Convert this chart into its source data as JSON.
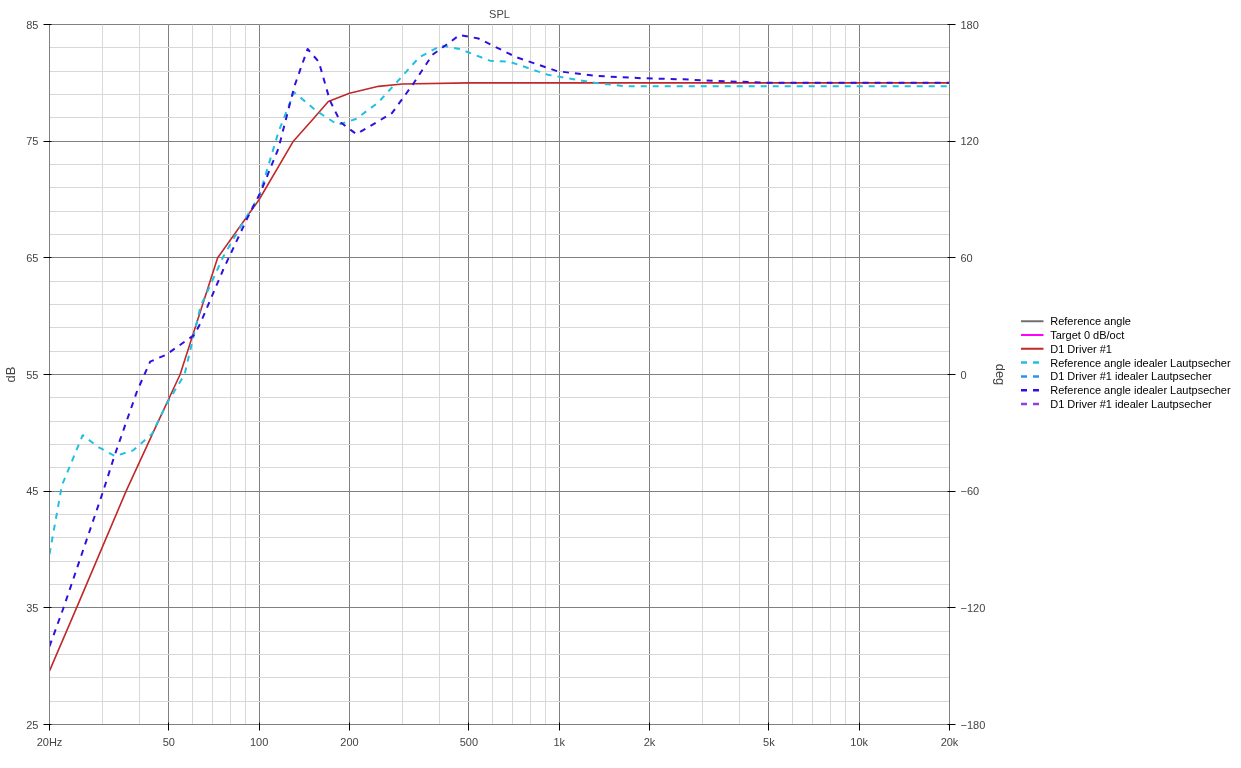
{
  "chart_data": {
    "type": "line",
    "title": "SPL",
    "ylabel": "dB",
    "y2label": "deg",
    "log": "x",
    "grid": true,
    "legend": "right",
    "marker": "none",
    "xlim": [
      20,
      20000
    ],
    "xticks": [
      {
        "value": 20,
        "label": "20Hz"
      },
      50,
      100,
      200,
      500,
      {
        "value": 1000,
        "label": "1k"
      },
      {
        "value": 2000,
        "label": "2k"
      },
      {
        "value": 5000,
        "label": "5k"
      },
      {
        "value": 10000,
        "label": "10k"
      },
      {
        "value": 20000,
        "label": "20k"
      }
    ],
    "ylim": [
      25,
      85
    ],
    "yticks": [
      25,
      35,
      45,
      55,
      65,
      75,
      85
    ],
    "y2lim": [
      -180,
      180
    ],
    "y2ticks": [
      -180,
      -120,
      -60,
      0,
      60,
      120,
      180
    ],
    "series": [
      {
        "name": "Reference angle",
        "color": "#707070",
        "line_style": "solid"
      },
      {
        "name": "Target 0 dB/oct",
        "color": "#ff00ff",
        "line_style": "solid"
      },
      {
        "name": "D1 Driver #1",
        "color": "#c0282a",
        "line_style": "solid",
        "x": [
          20,
          25,
          30,
          36,
          45,
          54.5,
          72.7,
          100,
          130,
          150,
          170,
          200,
          250,
          300,
          500,
          20000
        ],
        "values": [
          29.6,
          35.4,
          40.2,
          45,
          50.4,
          55,
          65,
          70,
          75,
          76.8,
          78.4,
          79.1,
          79.7,
          79.9,
          80,
          80
        ]
      },
      {
        "name": "Reference angle idealer Lautpsecher",
        "color": "#20c0e0",
        "line_style": "dashed",
        "x": [
          20,
          22,
          25.8,
          29,
          33.1,
          38,
          43.9,
          49.2,
          56.4,
          63.7,
          75.9,
          87.3,
          100,
          116,
          130.7,
          155,
          183,
          210,
          249,
          303,
          342,
          405,
          466,
          587,
          685,
          914,
          1315,
          1670,
          3000,
          20000
        ],
        "values": [
          39.6,
          45.5,
          49.8,
          48.8,
          48,
          48.5,
          49.9,
          52.5,
          55,
          60.8,
          65.1,
          67.8,
          70.3,
          75.8,
          79.2,
          77.6,
          76.4,
          76.9,
          78.3,
          80.7,
          82.2,
          83.2,
          82.9,
          81.9,
          81.8,
          80.7,
          80,
          79.7,
          79.7,
          79.7
        ]
      },
      {
        "name": "D1 Driver #1 idealer Lautpsecher",
        "color": "#3090f0",
        "line_style": "dashed"
      },
      {
        "name": "Reference angle idealer Lautpsecher",
        "color": "#3010e0",
        "line_style": "dashed",
        "x": [
          20,
          22.2,
          30.2,
          32.9,
          39.2,
          43.3,
          49,
          60.8,
          63.7,
          75.9,
          91.3,
          101,
          116,
          131,
          145,
          158,
          172,
          187,
          211,
          277,
          326,
          378,
          466,
          538,
          719,
          985,
          1315,
          1880,
          2600,
          3070,
          5000,
          20000
        ],
        "values": [
          31.7,
          34.9,
          45,
          48,
          53.6,
          56.1,
          56.7,
          58.4,
          59.4,
          64,
          68.4,
          70.6,
          74.4,
          79.7,
          82.9,
          81.8,
          78.5,
          76.6,
          75.6,
          77.4,
          79.9,
          82.4,
          84.1,
          83.8,
          82.2,
          81,
          80.6,
          80.4,
          80.3,
          80.2,
          80,
          80
        ]
      },
      {
        "name": "D1 Driver #1 idealer Lautpsecher",
        "color": "#9040e0",
        "line_style": "dashed"
      }
    ]
  }
}
